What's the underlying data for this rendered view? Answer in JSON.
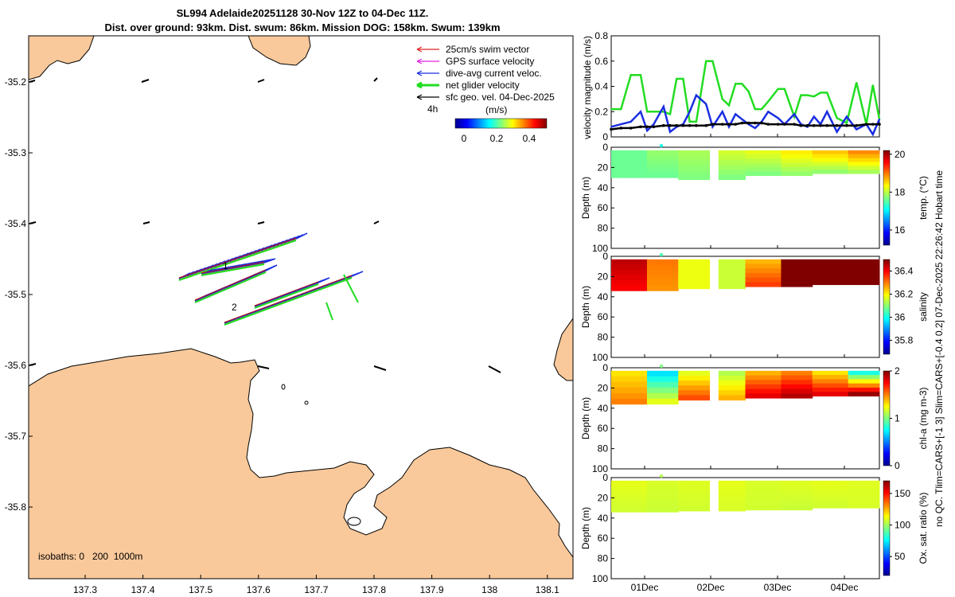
{
  "title_line1": "SL994 Adelaide20251128 30-Nov 12Z to 04-Dec 11Z.",
  "title_line2": "Dist. over ground: 93km. Dist. swum: 86km. Mission DOG: 158km. Swum: 139km",
  "side_note": "no QC. Tlim=CARS+[-1 3] Slim=CARS+[-0.4 0.2] 07-Dec-2025 22:26:42 Hobart time",
  "map": {
    "lon_ticks": [
      "137.3",
      "137.4",
      "137.5",
      "137.6",
      "137.7",
      "137.8",
      "137.9",
      "138",
      "138.1"
    ],
    "lat_ticks": [
      "-35.2",
      "-35.3",
      "-35.4",
      "-35.5",
      "-35.6",
      "-35.7",
      "-35.8"
    ],
    "legend": [
      {
        "label": "25cm/s swim vector",
        "color": "#e02020"
      },
      {
        "label": "GPS surface velocity",
        "color": "#e020e0"
      },
      {
        "label": "dive-avg current veloc.",
        "color": "#1a2ee0"
      },
      {
        "label": "net glider velocity",
        "color": "#22dd22"
      },
      {
        "label": "sfc geo. vel. 04-Dec-2025",
        "color": "#000000"
      }
    ],
    "time_marker": "4h",
    "colorbar_label": "(m/s)",
    "colorbar_ticks": [
      "0",
      "0.2",
      "0.4"
    ],
    "isobaths": "isobaths: 0   200  1000m",
    "track_labels": [
      "1",
      "2"
    ],
    "land_color": "#f9c99b"
  },
  "chart_data": [
    {
      "type": "line",
      "title": "",
      "ylabel": "velocity magnitude (m/s)",
      "ylim": [
        0,
        0.8
      ],
      "yticks": [
        "0",
        "0.2",
        "0.4",
        "0.6",
        "0.8"
      ],
      "x": [
        0,
        0.15,
        0.3,
        0.45,
        0.55,
        0.65,
        0.8,
        0.9,
        1.0,
        1.1,
        1.2,
        1.3,
        1.45,
        1.55,
        1.7,
        1.8,
        1.9,
        2.0,
        2.1,
        2.2,
        2.3,
        2.4,
        2.55,
        2.65,
        2.8,
        2.9,
        3.0,
        3.1,
        3.2,
        3.3,
        3.45,
        3.6,
        3.75,
        3.9,
        4.0,
        4.1
      ],
      "series": [
        {
          "name": "net glider velocity",
          "color": "#22dd22",
          "values": [
            0.22,
            0.22,
            0.49,
            0.49,
            0.2,
            0.2,
            0.2,
            0.18,
            0.46,
            0.46,
            0.12,
            0.12,
            0.6,
            0.6,
            0.3,
            0.25,
            0.42,
            0.42,
            0.36,
            0.22,
            0.22,
            0.28,
            0.38,
            0.38,
            0.16,
            0.33,
            0.33,
            0.32,
            0.35,
            0.35,
            0.15,
            0.11,
            0.43,
            0.1,
            0.41,
            0.14
          ]
        },
        {
          "name": "dive-avg current veloc.",
          "color": "#1a2ee0",
          "values": [
            0.08,
            0.1,
            0.12,
            0.2,
            0.05,
            0.1,
            0.24,
            0.04,
            0.08,
            0.1,
            0.2,
            0.33,
            0.26,
            0.08,
            0.2,
            0.08,
            0.18,
            0.14,
            0.1,
            0.07,
            0.12,
            0.2,
            0.15,
            0.1,
            0.18,
            0.1,
            0.08,
            0.16,
            0.1,
            0.2,
            0.04,
            0.16,
            0.06,
            0.1,
            0.02,
            0.14
          ]
        },
        {
          "name": "sfc geo. vel.",
          "color": "#000000",
          "values": [
            0.06,
            0.07,
            0.07,
            0.08,
            0.08,
            0.08,
            0.09,
            0.09,
            0.09,
            0.09,
            0.09,
            0.09,
            0.09,
            0.1,
            0.1,
            0.1,
            0.1,
            0.11,
            0.11,
            0.11,
            0.11,
            0.1,
            0.1,
            0.1,
            0.1,
            0.09,
            0.09,
            0.09,
            0.09,
            0.09,
            0.09,
            0.09,
            0.09,
            0.1,
            0.1,
            0.1
          ]
        }
      ]
    },
    {
      "type": "heatmap",
      "variable": "temp. (°C)",
      "ylabel": "Depth (m)",
      "yticks": [
        "0",
        "20",
        "40",
        "60",
        "80",
        "100"
      ],
      "colorbar_ticks": [
        "16",
        "18",
        "20"
      ],
      "clim": [
        15.2,
        20.2
      ],
      "x_categories": [
        "01Dec",
        "02Dec",
        "03Dec",
        "04Dec"
      ],
      "time_axis_days": [
        0,
        4.2
      ],
      "max_depth_m": [
        30,
        32,
        28,
        26
      ],
      "surface_values": [
        17.6,
        17.8,
        17.9,
        18.1,
        18.2,
        18.4,
        18.6,
        18.9
      ],
      "deep_values": [
        17.6,
        17.6,
        17.7,
        17.7,
        17.7,
        17.8,
        17.8,
        17.9
      ]
    },
    {
      "type": "heatmap",
      "variable": "salinity",
      "ylabel": "Depth (m)",
      "yticks": [
        "0",
        "20",
        "40",
        "60",
        "80",
        "100"
      ],
      "colorbar_ticks": [
        "35.8",
        "36",
        "36.2",
        "36.4"
      ],
      "clim": [
        35.68,
        36.5
      ],
      "x_categories": [
        "01Dec",
        "02Dec",
        "03Dec",
        "04Dec"
      ],
      "time_axis_days": [
        0,
        4.2
      ],
      "max_depth_m": [
        34,
        32,
        30,
        28
      ],
      "surface_values": [
        36.45,
        36.3,
        36.18,
        36.15,
        36.25,
        36.5,
        36.5,
        36.5
      ],
      "deep_values": [
        36.4,
        36.28,
        36.18,
        36.15,
        36.35,
        36.5,
        36.5,
        36.5
      ]
    },
    {
      "type": "heatmap",
      "variable": "chl-a (mg m-3)",
      "ylabel": "Depth (m)",
      "yticks": [
        "0",
        "20",
        "40",
        "60",
        "80",
        "100"
      ],
      "colorbar_ticks": [
        "0",
        "1",
        "2"
      ],
      "clim": [
        0,
        2
      ],
      "x_categories": [
        "01Dec",
        "02Dec",
        "03Dec",
        "04Dec"
      ],
      "time_axis_days": [
        0,
        4.2
      ],
      "max_depth_m": [
        36,
        32,
        30,
        28
      ],
      "surface_values": [
        1.3,
        0.7,
        1.2,
        1.1,
        1.4,
        1.5,
        1.3,
        0.8
      ],
      "deep_values": [
        1.5,
        1.2,
        1.6,
        1.4,
        1.8,
        1.9,
        1.8,
        1.95
      ]
    },
    {
      "type": "heatmap",
      "variable": "Ox. sat. ratio (%)",
      "ylabel": "Depth (m)",
      "yticks": [
        "0",
        "20",
        "40",
        "60",
        "80",
        "100"
      ],
      "colorbar_ticks": [
        "50",
        "100",
        "150"
      ],
      "clim": [
        20,
        170
      ],
      "x_categories": [
        "01Dec",
        "02Dec",
        "03Dec",
        "04Dec"
      ],
      "time_axis_days": [
        0,
        4.2
      ],
      "max_depth_m": [
        34,
        33,
        32,
        30
      ],
      "surface_values": [
        110,
        108,
        109,
        110,
        108,
        109,
        110,
        109
      ],
      "deep_values": [
        107,
        106,
        107,
        108,
        107,
        106,
        107,
        108
      ]
    }
  ]
}
